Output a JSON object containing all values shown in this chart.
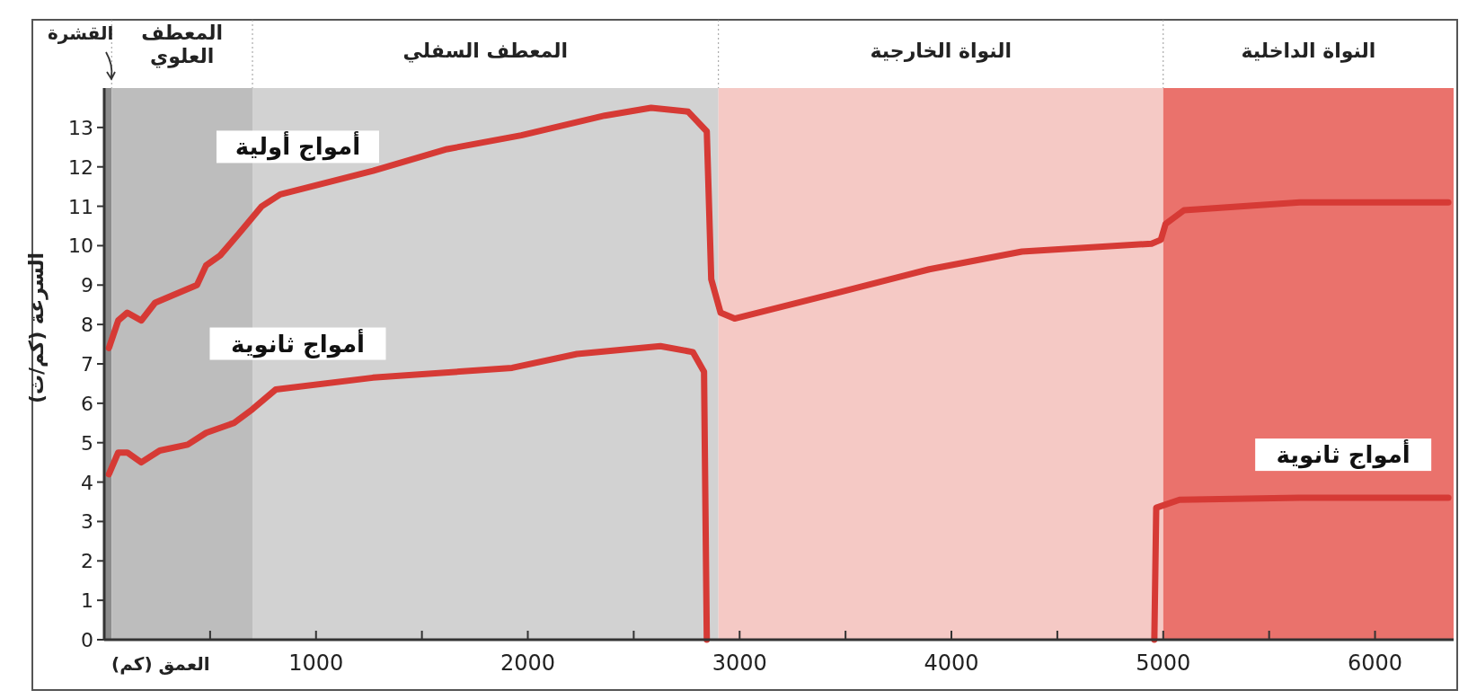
{
  "chart_data": {
    "type": "line",
    "xlabel": "العمق (كم)",
    "ylabel": "السرعة (كم/ث)",
    "xlim": [
      0,
      6371
    ],
    "ylim": [
      0,
      14
    ],
    "xticks": [
      {
        "value": 500,
        "label": null
      },
      1000,
      {
        "value": 1500,
        "label": null
      },
      2000,
      {
        "value": 2500,
        "label": null
      },
      3000,
      {
        "value": 3500,
        "label": null
      },
      4000,
      {
        "value": 4500,
        "label": null
      },
      5000,
      {
        "value": 5500,
        "label": null
      },
      6000
    ],
    "yticks": [
      0,
      1,
      2,
      3,
      4,
      5,
      6,
      7,
      8,
      9,
      10,
      11,
      12,
      13
    ],
    "grid": false,
    "marker": "none",
    "line_style": "solid",
    "series": [
      {
        "name": "أمواج أولية",
        "color": "#d63a35",
        "x": [
          22,
          66,
          109,
          175,
          240,
          350,
          438,
          481,
          547,
          635,
          744,
          831,
          1269,
          1619,
          1969,
          2363,
          2582,
          2757,
          2845,
          2866,
          2910,
          2976,
          3457,
          3895,
          4333,
          4945,
          4989,
          5011,
          5098,
          5645,
          6346
        ],
        "values": [
          7.4,
          8.1,
          8.3,
          8.1,
          8.55,
          8.8,
          9.0,
          9.5,
          9.75,
          10.3,
          11.0,
          11.3,
          11.9,
          12.45,
          12.8,
          13.3,
          13.5,
          13.4,
          12.9,
          9.15,
          8.3,
          8.15,
          8.8,
          9.4,
          9.85,
          10.05,
          10.15,
          10.55,
          10.9,
          11.1,
          11.1
        ]
      },
      {
        "name": "أمواج ثانوية",
        "color": "#d63a35",
        "x": [
          22,
          66,
          109,
          175,
          262,
          394,
          481,
          613,
          700,
          810,
          1269,
          1926,
          2232,
          2626,
          2779,
          2832,
          2845
        ],
        "values": [
          4.2,
          4.75,
          4.75,
          4.5,
          4.8,
          4.95,
          5.25,
          5.5,
          5.85,
          6.35,
          6.65,
          6.9,
          7.25,
          7.45,
          7.3,
          6.8,
          0
        ]
      },
      {
        "name": "أمواج ثانوية",
        "color": "#d63a35",
        "x": [
          4958,
          4967,
          5077,
          5645,
          6346
        ],
        "values": [
          0,
          3.35,
          3.55,
          3.6,
          3.6
        ]
      }
    ],
    "bands": [
      {
        "axis": "x",
        "from": 0,
        "to": 35,
        "label": "القشرة",
        "color": "#8c8c8c"
      },
      {
        "axis": "x",
        "from": 35,
        "to": 700,
        "label": "المعطف\nالعلوي",
        "color": "#bdbdbd"
      },
      {
        "axis": "x",
        "from": 700,
        "to": 2900,
        "label": "المعطف السفلي",
        "color": "#d2d2d2"
      },
      {
        "axis": "x",
        "from": 2900,
        "to": 5000,
        "label": "النواة الخارجية",
        "color": "#f5c9c5"
      },
      {
        "axis": "x",
        "from": 5000,
        "to": 6371,
        "label": "النواة الداخلية",
        "color": "#ea726c"
      }
    ]
  }
}
